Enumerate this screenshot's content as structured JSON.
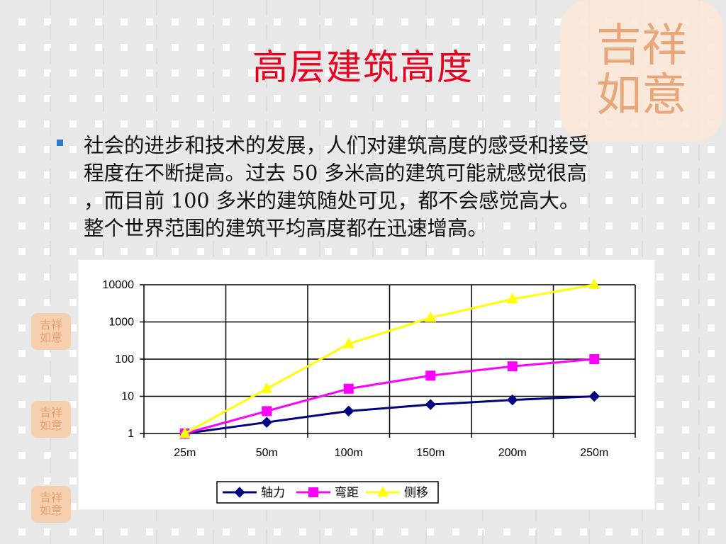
{
  "slide": {
    "title": "高层建筑高度",
    "body_lines": [
      "社会的进步和技术的发展，人们对建筑高度的感受和接受",
      "程度在不断提高。过去 50 多米高的建筑可能就感觉很高",
      "，而目前 100 多米的建筑随处可见，都不会感觉高大。",
      "整个世界范围的建筑平均高度都在迅速增高。"
    ],
    "decor": {
      "seal_large_text": [
        "吉祥",
        "如意"
      ],
      "seal_small_text": [
        "吉祥",
        "如意"
      ]
    },
    "colors": {
      "title": "#e8001c",
      "bullet": "#2a7bd0",
      "seal": "#e8a070"
    }
  },
  "chart_data": {
    "type": "line",
    "yscale": "log",
    "ylim": [
      1,
      10000
    ],
    "yticks": [
      "1",
      "10",
      "100",
      "1000",
      "10000"
    ],
    "categories": [
      "25m",
      "50m",
      "100m",
      "150m",
      "200m",
      "250m"
    ],
    "grid": true,
    "legend_position": "bottom",
    "series": [
      {
        "name": "轴力",
        "color": "#000080",
        "marker": "diamond",
        "values": [
          1,
          2,
          4,
          6,
          8,
          10
        ]
      },
      {
        "name": "弯距",
        "color": "#ff00ff",
        "marker": "square",
        "values": [
          1,
          4,
          16,
          36,
          64,
          100
        ]
      },
      {
        "name": "侧移",
        "color": "#ffff00",
        "marker": "triangle",
        "values": [
          1,
          16,
          256,
          1296,
          4096,
          10000
        ]
      }
    ]
  }
}
